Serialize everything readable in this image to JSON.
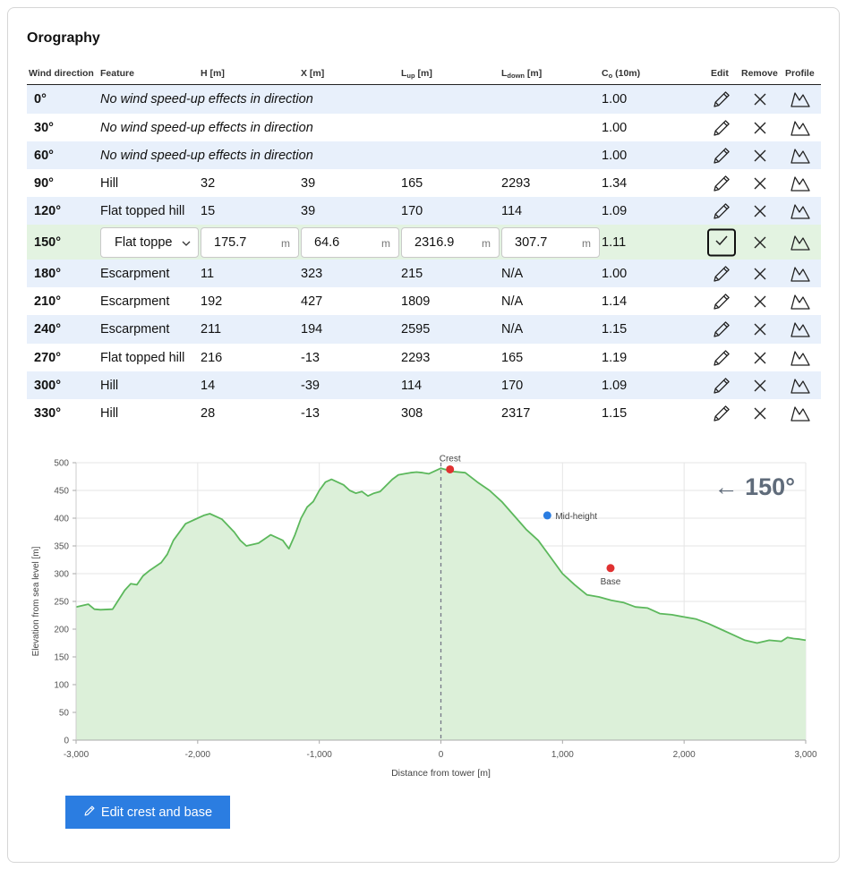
{
  "title": "Orography",
  "headers": {
    "wind_direction": "Wind direction",
    "feature": "Feature",
    "h": "H [m]",
    "x": "X [m]",
    "lup_main": "L",
    "lup_sub": "up",
    "lup_unit": " [m]",
    "ldown_main": "L",
    "ldown_sub": "down",
    "ldown_unit": " [m]",
    "co_main": "C",
    "co_sub": "o",
    "co_unit": " (10m)",
    "edit": "Edit",
    "remove": "Remove",
    "profile": "Profile"
  },
  "rows": [
    {
      "dir": "0°",
      "message": "No wind speed-up effects in direction",
      "co": "1.00"
    },
    {
      "dir": "30°",
      "message": "No wind speed-up effects in direction",
      "co": "1.00"
    },
    {
      "dir": "60°",
      "message": "No wind speed-up effects in direction",
      "co": "1.00"
    },
    {
      "dir": "90°",
      "feature": "Hill",
      "h": "32",
      "x": "39",
      "lup": "165",
      "ldown": "2293",
      "co": "1.34"
    },
    {
      "dir": "120°",
      "feature": "Flat topped hill",
      "h": "15",
      "x": "39",
      "lup": "170",
      "ldown": "114",
      "co": "1.09"
    },
    {
      "dir": "150°",
      "editing": true,
      "feature": "Flat toppe",
      "h": "175.7",
      "x": "64.6",
      "lup": "2316.9",
      "ldown": "307.7",
      "unit": "m",
      "co": "1.11"
    },
    {
      "dir": "180°",
      "feature": "Escarpment",
      "h": "11",
      "x": "323",
      "lup": "215",
      "ldown": "N/A",
      "co": "1.00"
    },
    {
      "dir": "210°",
      "feature": "Escarpment",
      "h": "192",
      "x": "427",
      "lup": "1809",
      "ldown": "N/A",
      "co": "1.14"
    },
    {
      "dir": "240°",
      "feature": "Escarpment",
      "h": "211",
      "x": "194",
      "lup": "2595",
      "ldown": "N/A",
      "co": "1.15"
    },
    {
      "dir": "270°",
      "feature": "Flat topped hill",
      "h": "216",
      "x": "-13",
      "lup": "2293",
      "ldown": "165",
      "co": "1.19"
    },
    {
      "dir": "300°",
      "feature": "Hill",
      "h": "14",
      "x": "-39",
      "lup": "114",
      "ldown": "170",
      "co": "1.09"
    },
    {
      "dir": "330°",
      "feature": "Hill",
      "h": "28",
      "x": "-13",
      "lup": "308",
      "ldown": "2317",
      "co": "1.15"
    }
  ],
  "icons": {
    "edit": "pencil-icon",
    "remove": "close-icon",
    "profile": "mountain-icon",
    "confirm": "check-icon"
  },
  "chart_data": {
    "type": "area",
    "xlabel": "Distance from tower [m]",
    "ylabel": "Elevation from sea level [m]",
    "xlim": [
      -3000,
      3000
    ],
    "ylim": [
      0,
      500
    ],
    "xticks": [
      -3000,
      -2000,
      -1000,
      0,
      1000,
      2000,
      3000
    ],
    "xtick_labels": [
      "-3,000",
      "-2,000",
      "-1,000",
      "0",
      "1,000",
      "2,000",
      "3,000"
    ],
    "yticks": [
      0,
      50,
      100,
      150,
      200,
      250,
      300,
      350,
      400,
      450,
      500
    ],
    "grid": true,
    "line_color": "#5cb85c",
    "fill_color": "#dcf0d9",
    "direction_label": "← 150°",
    "tower_x": 0,
    "x": [
      -3000,
      -2900,
      -2850,
      -2800,
      -2700,
      -2600,
      -2550,
      -2500,
      -2450,
      -2400,
      -2300,
      -2250,
      -2200,
      -2100,
      -2000,
      -1950,
      -1900,
      -1800,
      -1700,
      -1650,
      -1600,
      -1500,
      -1400,
      -1350,
      -1300,
      -1250,
      -1200,
      -1150,
      -1100,
      -1050,
      -1000,
      -950,
      -900,
      -800,
      -750,
      -700,
      -650,
      -600,
      -550,
      -500,
      -400,
      -350,
      -300,
      -250,
      -200,
      -150,
      -100,
      -50,
      0,
      50,
      100,
      200,
      300,
      400,
      500,
      600,
      700,
      800,
      900,
      1000,
      1100,
      1200,
      1300,
      1400,
      1500,
      1600,
      1700,
      1800,
      1900,
      2000,
      2100,
      2200,
      2300,
      2400,
      2500,
      2600,
      2700,
      2800,
      2850,
      2900,
      2950,
      3000
    ],
    "y": [
      240,
      245,
      236,
      235,
      236,
      270,
      282,
      280,
      296,
      305,
      320,
      335,
      360,
      390,
      400,
      405,
      408,
      398,
      375,
      360,
      350,
      355,
      370,
      365,
      360,
      345,
      370,
      400,
      420,
      430,
      450,
      465,
      470,
      460,
      450,
      445,
      448,
      440,
      445,
      448,
      470,
      478,
      480,
      482,
      483,
      482,
      480,
      485,
      490,
      487,
      484,
      482,
      465,
      450,
      430,
      405,
      380,
      360,
      330,
      300,
      280,
      262,
      258,
      252,
      248,
      240,
      238,
      228,
      226,
      222,
      218,
      210,
      200,
      190,
      180,
      175,
      180,
      178,
      185,
      183,
      182,
      180
    ],
    "markers": [
      {
        "label": "Crest",
        "x": 75,
        "y": 488,
        "color": "#e03131"
      },
      {
        "label": "Mid-height",
        "x": 875,
        "y": 405,
        "color": "#2b7de1"
      },
      {
        "label": "Base",
        "x": 1395,
        "y": 310,
        "color": "#e03131"
      }
    ]
  },
  "edit_button": {
    "label": "Edit crest and base",
    "icon": "pencil-icon"
  }
}
